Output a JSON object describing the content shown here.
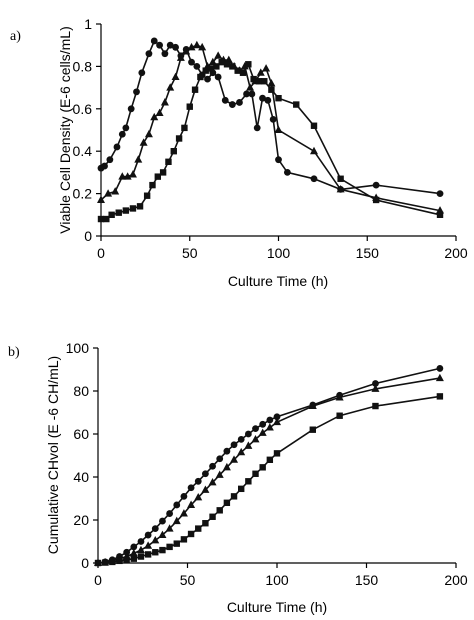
{
  "chart_data": [
    {
      "type": "line",
      "panel_label": "a)",
      "xlabel": "Culture Time (h)",
      "ylabel": "Viable Cell Density (E-6 cells/mL)",
      "xlim": [
        0,
        200
      ],
      "ylim": [
        0,
        1
      ],
      "xticks": [
        0,
        50,
        100,
        150,
        200
      ],
      "yticks": [
        0,
        0.2,
        0.4,
        0.6,
        0.8,
        1
      ],
      "ytick_labels": [
        "0",
        "0.2",
        "0.4",
        "0.6",
        "0.8",
        "1"
      ],
      "grid": false,
      "series": [
        {
          "marker": "circle",
          "x": [
            0,
            2,
            5,
            9,
            12,
            14,
            17,
            20,
            23,
            27,
            30,
            33,
            36,
            39,
            42,
            45,
            48,
            51,
            54,
            57,
            60,
            63,
            66,
            70,
            74,
            78,
            82,
            85,
            88,
            91,
            94,
            97,
            100,
            105,
            120,
            135,
            155,
            191
          ],
          "y": [
            0.32,
            0.33,
            0.36,
            0.42,
            0.48,
            0.51,
            0.6,
            0.68,
            0.77,
            0.86,
            0.92,
            0.9,
            0.86,
            0.9,
            0.89,
            0.85,
            0.88,
            0.82,
            0.8,
            0.76,
            0.74,
            0.77,
            0.75,
            0.64,
            0.62,
            0.63,
            0.67,
            0.67,
            0.51,
            0.65,
            0.64,
            0.55,
            0.36,
            0.3,
            0.27,
            0.22,
            0.24,
            0.2
          ]
        },
        {
          "marker": "triangle",
          "x": [
            0,
            4,
            8,
            12,
            15,
            18,
            21,
            24,
            27,
            30,
            33,
            36,
            39,
            42,
            45,
            48,
            51,
            54,
            57,
            60,
            63,
            66,
            69,
            72,
            75,
            78,
            81,
            84,
            87,
            90,
            93,
            96,
            100,
            120,
            135,
            155,
            191
          ],
          "y": [
            0.17,
            0.2,
            0.21,
            0.28,
            0.28,
            0.29,
            0.36,
            0.44,
            0.48,
            0.56,
            0.58,
            0.63,
            0.7,
            0.75,
            0.84,
            0.87,
            0.89,
            0.9,
            0.89,
            0.8,
            0.82,
            0.85,
            0.83,
            0.83,
            0.8,
            0.78,
            0.8,
            0.7,
            0.73,
            0.77,
            0.79,
            0.72,
            0.5,
            0.4,
            0.22,
            0.18,
            0.12
          ]
        },
        {
          "marker": "square",
          "x": [
            0,
            3,
            6,
            10,
            14,
            18,
            22,
            26,
            29,
            32,
            35,
            38,
            41,
            44,
            47,
            50,
            53,
            56,
            59,
            62,
            65,
            68,
            71,
            74,
            77,
            80,
            83,
            86,
            89,
            92,
            96,
            100,
            110,
            120,
            135,
            155,
            191
          ],
          "y": [
            0.08,
            0.08,
            0.1,
            0.11,
            0.12,
            0.13,
            0.14,
            0.19,
            0.24,
            0.28,
            0.3,
            0.35,
            0.4,
            0.46,
            0.51,
            0.61,
            0.69,
            0.75,
            0.78,
            0.79,
            0.8,
            0.82,
            0.81,
            0.8,
            0.78,
            0.77,
            0.81,
            0.74,
            0.73,
            0.73,
            0.69,
            0.65,
            0.62,
            0.52,
            0.27,
            0.17,
            0.1
          ]
        }
      ]
    },
    {
      "type": "line",
      "panel_label": "b)",
      "xlabel": "Culture Time (h)",
      "ylabel": "Cumulative CHvol (E -6 CH/mL)",
      "xlim": [
        0,
        200
      ],
      "ylim": [
        0,
        100
      ],
      "xticks": [
        0,
        50,
        100,
        150,
        200
      ],
      "yticks": [
        0,
        20,
        40,
        60,
        80,
        100
      ],
      "ytick_labels": [
        "0",
        "20",
        "40",
        "60",
        "80",
        "100"
      ],
      "grid": false,
      "series": [
        {
          "marker": "circle",
          "x": [
            0,
            4,
            8,
            12,
            16,
            20,
            24,
            28,
            32,
            36,
            40,
            44,
            48,
            52,
            56,
            60,
            64,
            68,
            72,
            76,
            80,
            84,
            88,
            92,
            96,
            100,
            120,
            135,
            155,
            191
          ],
          "y": [
            0,
            0.5,
            1.5,
            3,
            5,
            7.5,
            10,
            13,
            16,
            19.5,
            23,
            27,
            31,
            35,
            38,
            41.5,
            45,
            48.5,
            52,
            55,
            57.5,
            60,
            62.5,
            64.5,
            66.5,
            68,
            73.5,
            78,
            83.5,
            90.5
          ]
        },
        {
          "marker": "triangle",
          "x": [
            0,
            4,
            8,
            12,
            16,
            20,
            24,
            28,
            32,
            36,
            40,
            44,
            48,
            52,
            56,
            60,
            64,
            68,
            72,
            76,
            80,
            84,
            88,
            92,
            96,
            100,
            120,
            135,
            155,
            191
          ],
          "y": [
            0,
            0.3,
            1,
            2,
            3,
            4.5,
            6,
            8,
            10.5,
            13,
            16,
            19.5,
            23,
            27,
            30.5,
            34,
            37.5,
            41,
            44.5,
            48,
            51.5,
            54.5,
            57.5,
            60.5,
            63,
            65.5,
            73,
            77,
            81,
            86
          ]
        },
        {
          "marker": "square",
          "x": [
            0,
            4,
            8,
            12,
            16,
            20,
            24,
            28,
            32,
            36,
            40,
            44,
            48,
            52,
            56,
            60,
            64,
            68,
            72,
            76,
            80,
            84,
            88,
            92,
            96,
            100,
            120,
            135,
            155,
            191
          ],
          "y": [
            0,
            0.2,
            0.5,
            1,
            1.5,
            2,
            3,
            4,
            5,
            6,
            7.5,
            9,
            11,
            13.5,
            16,
            18.5,
            21.5,
            24.5,
            28,
            31,
            34.5,
            38,
            41.5,
            44.5,
            48,
            51,
            62,
            68.5,
            73,
            77.5
          ]
        }
      ]
    }
  ]
}
